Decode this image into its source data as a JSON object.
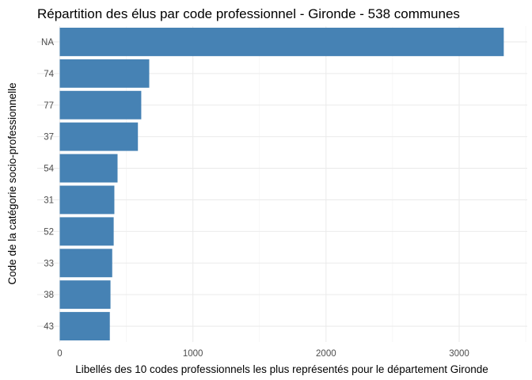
{
  "chart_data": {
    "type": "bar",
    "orientation": "horizontal",
    "title": "Répartition des élus par code professionnel - Gironde - 538 communes",
    "xlabel": "Libellés des 10 codes professionnels les plus représentés pour le département Gironde",
    "ylabel": "Code de la catégorie socio-professionnelle",
    "categories": [
      "NA",
      "74",
      "77",
      "37",
      "54",
      "31",
      "52",
      "33",
      "38",
      "43"
    ],
    "values": [
      3335,
      672,
      612,
      587,
      434,
      410,
      405,
      394,
      381,
      376
    ],
    "xlim": [
      0,
      3335
    ],
    "xticks": [
      0,
      1000,
      2000,
      3000
    ],
    "bar_color": "#4682B4",
    "grid": true
  }
}
